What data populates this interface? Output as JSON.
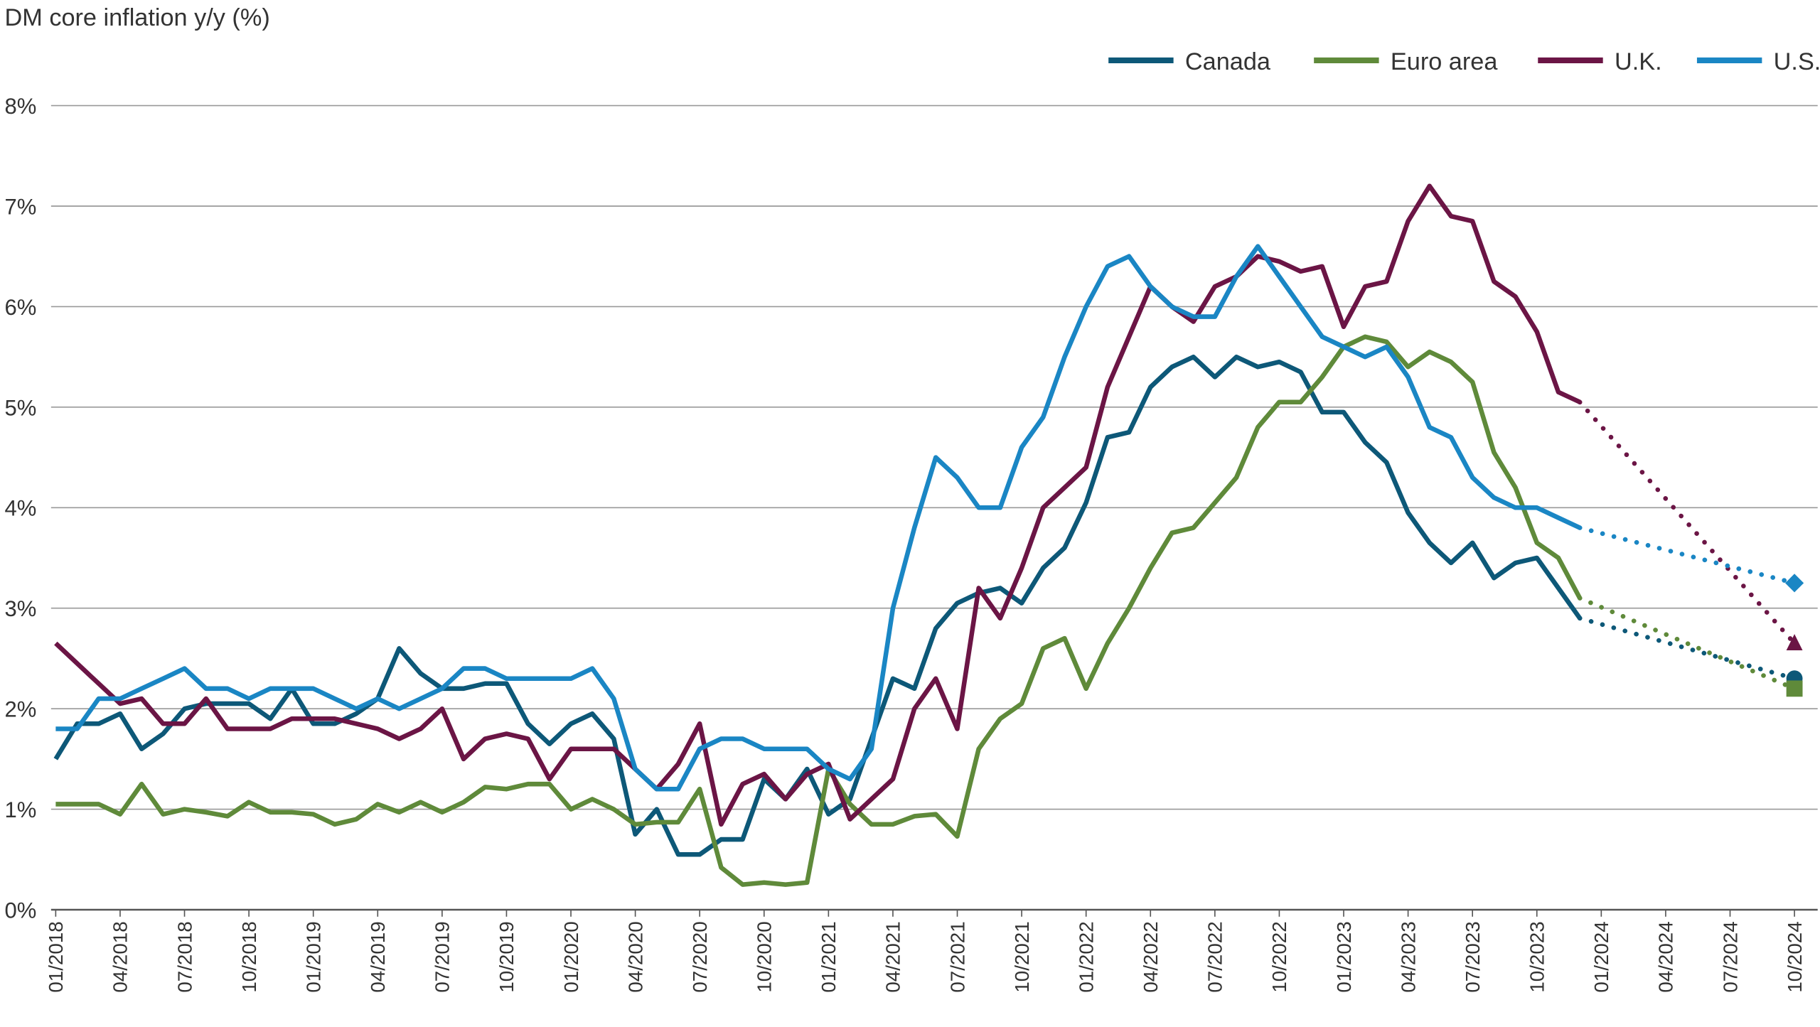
{
  "chart_data": {
    "type": "line",
    "title": "DM core inflation y/y (%)",
    "xlabel": "",
    "ylabel": "",
    "ylim": [
      0,
      8
    ],
    "y_ticks": [
      "0%",
      "1%",
      "2%",
      "3%",
      "4%",
      "5%",
      "6%",
      "7%",
      "8%"
    ],
    "x_start": "01/2018",
    "x_ticks": [
      "01/2018",
      "04/2018",
      "07/2018",
      "10/2018",
      "01/2019",
      "04/2019",
      "07/2019",
      "10/2019",
      "01/2020",
      "04/2020",
      "07/2020",
      "10/2020",
      "01/2021",
      "04/2021",
      "07/2021",
      "10/2021",
      "01/2022",
      "04/2022",
      "07/2022",
      "10/2022",
      "01/2023",
      "04/2023",
      "07/2023",
      "10/2023",
      "01/2024",
      "04/2024",
      "07/2024",
      "10/2024"
    ],
    "grid": true,
    "legend_position": "top-right",
    "series": [
      {
        "name": "Canada",
        "color": "#0d5878",
        "marker": "circle",
        "values": [
          1.5,
          1.85,
          1.85,
          1.95,
          1.6,
          1.75,
          2.0,
          2.05,
          2.05,
          2.05,
          1.9,
          2.2,
          1.85,
          1.85,
          1.95,
          2.1,
          2.6,
          2.35,
          2.2,
          2.2,
          2.25,
          2.25,
          1.85,
          1.65,
          1.85,
          1.95,
          1.7,
          0.75,
          1.0,
          0.55,
          0.55,
          0.7,
          0.7,
          1.3,
          1.1,
          1.4,
          0.95,
          1.1,
          1.7,
          2.3,
          2.2,
          2.8,
          3.05,
          3.15,
          3.2,
          3.05,
          3.4,
          3.6,
          4.05,
          4.7,
          4.75,
          5.2,
          5.4,
          5.5,
          5.3,
          5.5,
          5.4,
          5.45,
          5.35,
          4.95,
          4.95,
          4.65,
          4.45,
          3.95,
          3.65,
          3.45,
          3.65,
          3.3,
          3.45,
          3.5,
          3.2,
          2.9
        ],
        "forecast": {
          "date": "10/2024",
          "value": 2.3
        }
      },
      {
        "name": "Euro area",
        "color": "#5f8a3a",
        "marker": "square",
        "values": [
          1.05,
          1.05,
          1.05,
          0.95,
          1.25,
          0.95,
          1.0,
          0.97,
          0.93,
          1.07,
          0.97,
          0.97,
          0.95,
          0.85,
          0.9,
          1.05,
          0.97,
          1.07,
          0.97,
          1.07,
          1.22,
          1.2,
          1.25,
          1.25,
          1.0,
          1.1,
          1.0,
          0.85,
          0.87,
          0.87,
          1.2,
          0.42,
          0.25,
          0.27,
          0.25,
          0.27,
          1.4,
          1.05,
          0.85,
          0.85,
          0.93,
          0.95,
          0.73,
          1.6,
          1.9,
          2.05,
          2.6,
          2.7,
          2.2,
          2.65,
          3.0,
          3.4,
          3.75,
          3.8,
          4.05,
          4.3,
          4.8,
          5.05,
          5.05,
          5.3,
          5.6,
          5.7,
          5.65,
          5.4,
          5.55,
          5.45,
          5.25,
          4.55,
          4.2,
          3.65,
          3.5,
          3.1
        ],
        "forecast": {
          "date": "10/2024",
          "value": 2.2
        }
      },
      {
        "name": "U.K.",
        "color": "#6b1545",
        "marker": "triangle",
        "values": [
          2.65,
          2.45,
          2.25,
          2.05,
          2.1,
          1.85,
          1.85,
          2.1,
          1.8,
          1.8,
          1.8,
          1.9,
          1.9,
          1.9,
          1.85,
          1.8,
          1.7,
          1.8,
          2.0,
          1.5,
          1.7,
          1.75,
          1.7,
          1.3,
          1.6,
          1.6,
          1.6,
          1.4,
          1.2,
          1.45,
          1.85,
          0.85,
          1.25,
          1.35,
          1.1,
          1.35,
          1.45,
          0.9,
          1.1,
          1.3,
          2.0,
          2.3,
          1.8,
          3.2,
          2.9,
          3.4,
          4.0,
          4.2,
          4.4,
          5.2,
          5.7,
          6.2,
          6.0,
          5.85,
          6.2,
          6.3,
          6.5,
          6.45,
          6.35,
          6.4,
          5.8,
          6.2,
          6.25,
          6.85,
          7.2,
          6.9,
          6.85,
          6.25,
          6.1,
          5.75,
          5.15,
          5.05
        ],
        "forecast": {
          "date": "10/2024",
          "value": 2.65
        }
      },
      {
        "name": "U.S.",
        "color": "#1a86c4",
        "marker": "diamond",
        "values": [
          1.8,
          1.8,
          2.1,
          2.1,
          2.2,
          2.3,
          2.4,
          2.2,
          2.2,
          2.1,
          2.2,
          2.2,
          2.2,
          2.1,
          2.0,
          2.1,
          2.0,
          2.1,
          2.2,
          2.4,
          2.4,
          2.3,
          2.3,
          2.3,
          2.3,
          2.4,
          2.1,
          1.4,
          1.2,
          1.2,
          1.6,
          1.7,
          1.7,
          1.6,
          1.6,
          1.6,
          1.4,
          1.3,
          1.6,
          3.0,
          3.8,
          4.5,
          4.3,
          4.0,
          4.0,
          4.6,
          4.9,
          5.5,
          6.0,
          6.4,
          6.5,
          6.2,
          6.0,
          5.9,
          5.9,
          6.3,
          6.6,
          6.3,
          6.0,
          5.7,
          5.6,
          5.5,
          5.6,
          5.3,
          4.8,
          4.7,
          4.3,
          4.1,
          4.0,
          4.0,
          3.9,
          3.8
        ],
        "forecast": {
          "date": "10/2024",
          "value": 3.25
        }
      }
    ]
  }
}
